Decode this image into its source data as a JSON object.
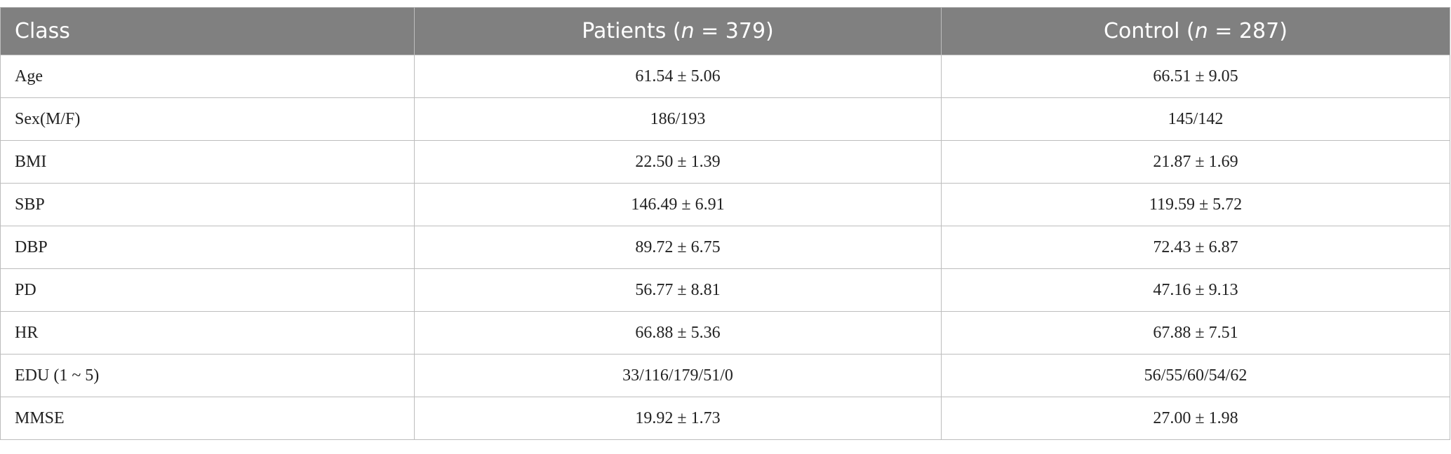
{
  "table": {
    "header": [
      [
        "Class"
      ],
      [
        "Patients (",
        "n",
        " = 379)"
      ],
      [
        "Control (",
        "n",
        " = 287)"
      ]
    ],
    "rows": [
      [
        "Age",
        "61.54 ± 5.06",
        "66.51 ± 9.05"
      ],
      [
        "Sex(M/F)",
        "186/193",
        "145/142"
      ],
      [
        "BMI",
        "22.50 ± 1.39",
        "21.87 ± 1.69"
      ],
      [
        "SBP",
        "146.49 ± 6.91",
        "119.59 ± 5.72"
      ],
      [
        "DBP",
        "89.72 ± 6.75",
        "72.43 ± 6.87"
      ],
      [
        "PD",
        "56.77 ± 8.81",
        "47.16 ± 9.13"
      ],
      [
        "HR",
        "66.88 ± 5.36",
        "67.88 ± 7.51"
      ],
      [
        "EDU (1 ~ 5)",
        "33/116/179/51/0",
        "56/55/60/54/62"
      ],
      [
        "MMSE",
        "19.92 ± 1.73",
        "27.00 ± 1.98"
      ]
    ]
  }
}
